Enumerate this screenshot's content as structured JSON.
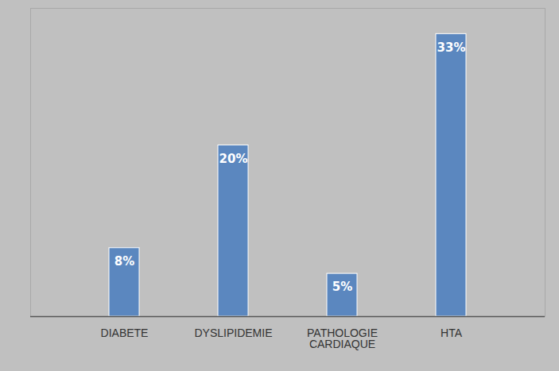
{
  "chart_data": {
    "type": "bar",
    "categories": [
      "DIABETE",
      "DYSLIPIDEMIE",
      "PATHOLOGIE CARDIAQUE",
      "HTA"
    ],
    "values": [
      8,
      20,
      5,
      33
    ],
    "value_labels": [
      "8%",
      "20%",
      "5%",
      "33%"
    ],
    "color": "#5b87bf",
    "ylim": [
      0,
      36
    ],
    "grid": false,
    "data_labels": true,
    "tick_labels": "x"
  }
}
